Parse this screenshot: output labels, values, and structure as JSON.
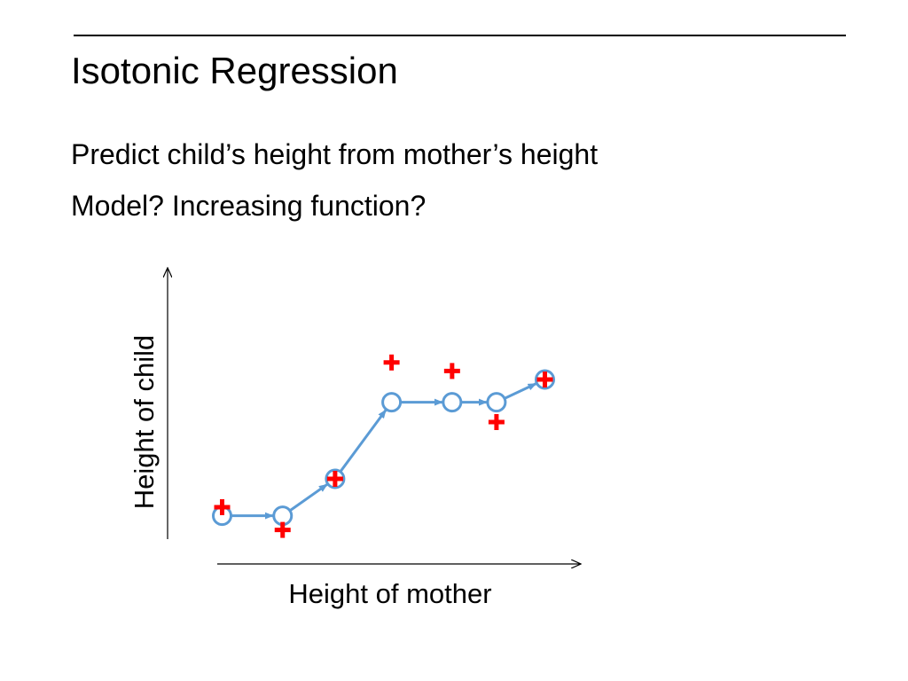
{
  "slide": {
    "title": "Isotonic Regression",
    "body_lines": [
      "Predict child’s height from mother’s height",
      "Model? Increasing function?"
    ]
  },
  "chart_data": {
    "type": "scatter",
    "title": "",
    "xlabel": "Height of mother",
    "ylabel": "Height of child",
    "grid": false,
    "xlim": [
      0,
      10
    ],
    "ylim": [
      0,
      10
    ],
    "observed_points": [
      {
        "x": 1.0,
        "y": 1.5
      },
      {
        "x": 2.5,
        "y": 0.7
      },
      {
        "x": 3.8,
        "y": 2.5
      },
      {
        "x": 5.2,
        "y": 6.6
      },
      {
        "x": 6.7,
        "y": 6.3
      },
      {
        "x": 7.8,
        "y": 4.5
      },
      {
        "x": 9.0,
        "y": 6.0
      }
    ],
    "fitted_points": [
      {
        "x": 1.0,
        "y": 1.2
      },
      {
        "x": 2.5,
        "y": 1.2
      },
      {
        "x": 3.8,
        "y": 2.5
      },
      {
        "x": 5.2,
        "y": 5.2
      },
      {
        "x": 6.7,
        "y": 5.2
      },
      {
        "x": 7.8,
        "y": 5.2
      },
      {
        "x": 9.0,
        "y": 6.0
      }
    ],
    "colors": {
      "observed": "#ff0000",
      "fitted": "#5b9bd5",
      "axes": "#000000"
    }
  }
}
